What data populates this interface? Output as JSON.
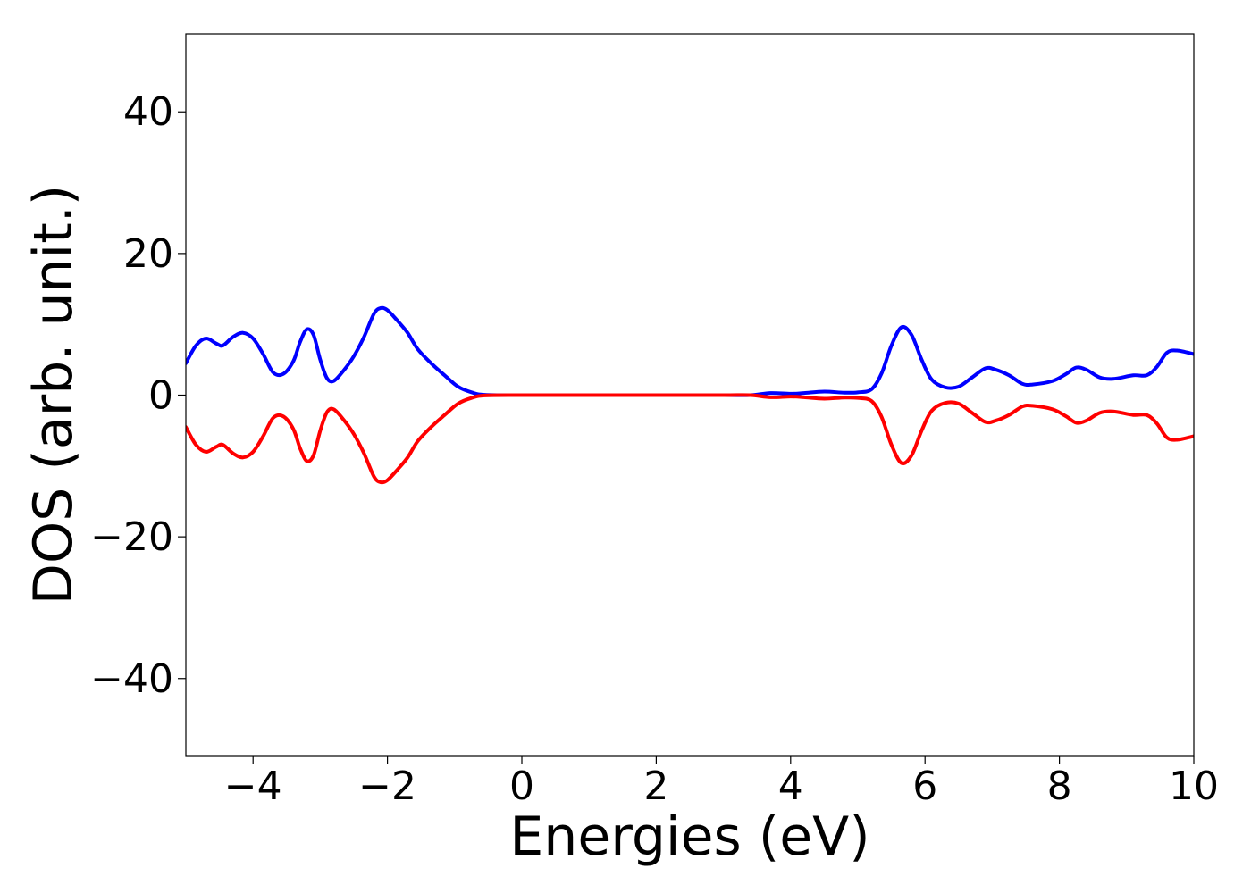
{
  "chart_data": {
    "type": "line",
    "title": "",
    "xlabel": "Energies (eV)",
    "ylabel": "DOS (arb. unit.)",
    "xlim": [
      -5,
      10
    ],
    "ylim": [
      -51,
      51
    ],
    "grid": false,
    "legend": "none",
    "xticks": [
      -4,
      -2,
      0,
      2,
      4,
      6,
      8,
      10
    ],
    "yticks": [
      -40,
      -20,
      0,
      20,
      40
    ],
    "xtick_labels": [
      "−4",
      "−2",
      "0",
      "2",
      "4",
      "6",
      "8",
      "10"
    ],
    "ytick_labels": [
      "−40",
      "−20",
      "0",
      "20",
      "40"
    ],
    "series": [
      {
        "color": "#0000ff",
        "points": [
          [
            -5.0,
            4.5
          ],
          [
            -4.85,
            7.0
          ],
          [
            -4.7,
            8.0
          ],
          [
            -4.55,
            7.3
          ],
          [
            -4.45,
            7.0
          ],
          [
            -4.3,
            8.2
          ],
          [
            -4.15,
            8.8
          ],
          [
            -4.0,
            8.0
          ],
          [
            -3.85,
            5.8
          ],
          [
            -3.7,
            3.2
          ],
          [
            -3.55,
            3.0
          ],
          [
            -3.4,
            4.8
          ],
          [
            -3.3,
            7.5
          ],
          [
            -3.2,
            9.3
          ],
          [
            -3.1,
            8.5
          ],
          [
            -3.0,
            5.0
          ],
          [
            -2.9,
            2.4
          ],
          [
            -2.8,
            2.0
          ],
          [
            -2.65,
            3.5
          ],
          [
            -2.5,
            5.5
          ],
          [
            -2.35,
            8.2
          ],
          [
            -2.2,
            11.5
          ],
          [
            -2.1,
            12.3
          ],
          [
            -2.0,
            12.0
          ],
          [
            -1.85,
            10.5
          ],
          [
            -1.7,
            8.8
          ],
          [
            -1.55,
            6.5
          ],
          [
            -1.35,
            4.5
          ],
          [
            -1.15,
            2.8
          ],
          [
            -0.95,
            1.2
          ],
          [
            -0.75,
            0.4
          ],
          [
            -0.55,
            0.05
          ],
          [
            0.0,
            0.0
          ],
          [
            1.0,
            0.0
          ],
          [
            2.0,
            0.0
          ],
          [
            3.0,
            0.0
          ],
          [
            3.4,
            0.0
          ],
          [
            3.7,
            0.3
          ],
          [
            4.0,
            0.2
          ],
          [
            4.2,
            0.3
          ],
          [
            4.5,
            0.5
          ],
          [
            4.8,
            0.35
          ],
          [
            5.0,
            0.4
          ],
          [
            5.2,
            0.8
          ],
          [
            5.35,
            3.0
          ],
          [
            5.5,
            7.0
          ],
          [
            5.65,
            9.6
          ],
          [
            5.8,
            8.5
          ],
          [
            5.95,
            5.0
          ],
          [
            6.1,
            2.2
          ],
          [
            6.3,
            1.1
          ],
          [
            6.5,
            1.2
          ],
          [
            6.7,
            2.5
          ],
          [
            6.9,
            3.8
          ],
          [
            7.05,
            3.6
          ],
          [
            7.25,
            2.8
          ],
          [
            7.45,
            1.6
          ],
          [
            7.6,
            1.5
          ],
          [
            7.9,
            2.0
          ],
          [
            8.1,
            3.0
          ],
          [
            8.25,
            3.9
          ],
          [
            8.4,
            3.6
          ],
          [
            8.6,
            2.5
          ],
          [
            8.8,
            2.3
          ],
          [
            9.1,
            2.8
          ],
          [
            9.3,
            2.8
          ],
          [
            9.45,
            4.0
          ],
          [
            9.6,
            6.0
          ],
          [
            9.75,
            6.3
          ],
          [
            10.0,
            5.8
          ]
        ]
      },
      {
        "color": "#ff0000",
        "points": [
          [
            -5.0,
            -4.5
          ],
          [
            -4.85,
            -7.0
          ],
          [
            -4.7,
            -8.0
          ],
          [
            -4.55,
            -7.3
          ],
          [
            -4.45,
            -7.0
          ],
          [
            -4.3,
            -8.2
          ],
          [
            -4.15,
            -8.8
          ],
          [
            -4.0,
            -8.0
          ],
          [
            -3.85,
            -5.8
          ],
          [
            -3.7,
            -3.2
          ],
          [
            -3.55,
            -3.0
          ],
          [
            -3.4,
            -4.8
          ],
          [
            -3.3,
            -7.5
          ],
          [
            -3.2,
            -9.3
          ],
          [
            -3.1,
            -8.5
          ],
          [
            -3.0,
            -5.0
          ],
          [
            -2.9,
            -2.4
          ],
          [
            -2.8,
            -2.0
          ],
          [
            -2.65,
            -3.5
          ],
          [
            -2.5,
            -5.5
          ],
          [
            -2.35,
            -8.2
          ],
          [
            -2.2,
            -11.5
          ],
          [
            -2.1,
            -12.3
          ],
          [
            -2.0,
            -12.0
          ],
          [
            -1.85,
            -10.5
          ],
          [
            -1.7,
            -8.8
          ],
          [
            -1.55,
            -6.5
          ],
          [
            -1.35,
            -4.5
          ],
          [
            -1.15,
            -2.8
          ],
          [
            -0.95,
            -1.2
          ],
          [
            -0.75,
            -0.4
          ],
          [
            -0.55,
            -0.05
          ],
          [
            0.0,
            0.0
          ],
          [
            1.0,
            0.0
          ],
          [
            2.0,
            0.0
          ],
          [
            3.0,
            0.0
          ],
          [
            3.4,
            0.0
          ],
          [
            3.7,
            -0.3
          ],
          [
            4.0,
            -0.2
          ],
          [
            4.2,
            -0.3
          ],
          [
            4.5,
            -0.5
          ],
          [
            4.8,
            -0.35
          ],
          [
            5.0,
            -0.4
          ],
          [
            5.2,
            -0.8
          ],
          [
            5.35,
            -3.0
          ],
          [
            5.5,
            -7.0
          ],
          [
            5.65,
            -9.6
          ],
          [
            5.8,
            -8.5
          ],
          [
            5.95,
            -5.0
          ],
          [
            6.1,
            -2.2
          ],
          [
            6.3,
            -1.1
          ],
          [
            6.5,
            -1.2
          ],
          [
            6.7,
            -2.5
          ],
          [
            6.9,
            -3.8
          ],
          [
            7.05,
            -3.6
          ],
          [
            7.25,
            -2.8
          ],
          [
            7.45,
            -1.6
          ],
          [
            7.6,
            -1.5
          ],
          [
            7.9,
            -2.0
          ],
          [
            8.1,
            -3.0
          ],
          [
            8.25,
            -3.9
          ],
          [
            8.4,
            -3.6
          ],
          [
            8.6,
            -2.5
          ],
          [
            8.8,
            -2.3
          ],
          [
            9.1,
            -2.8
          ],
          [
            9.3,
            -2.8
          ],
          [
            9.45,
            -4.0
          ],
          [
            9.6,
            -6.0
          ],
          [
            9.75,
            -6.3
          ],
          [
            10.0,
            -5.8
          ]
        ]
      }
    ]
  }
}
